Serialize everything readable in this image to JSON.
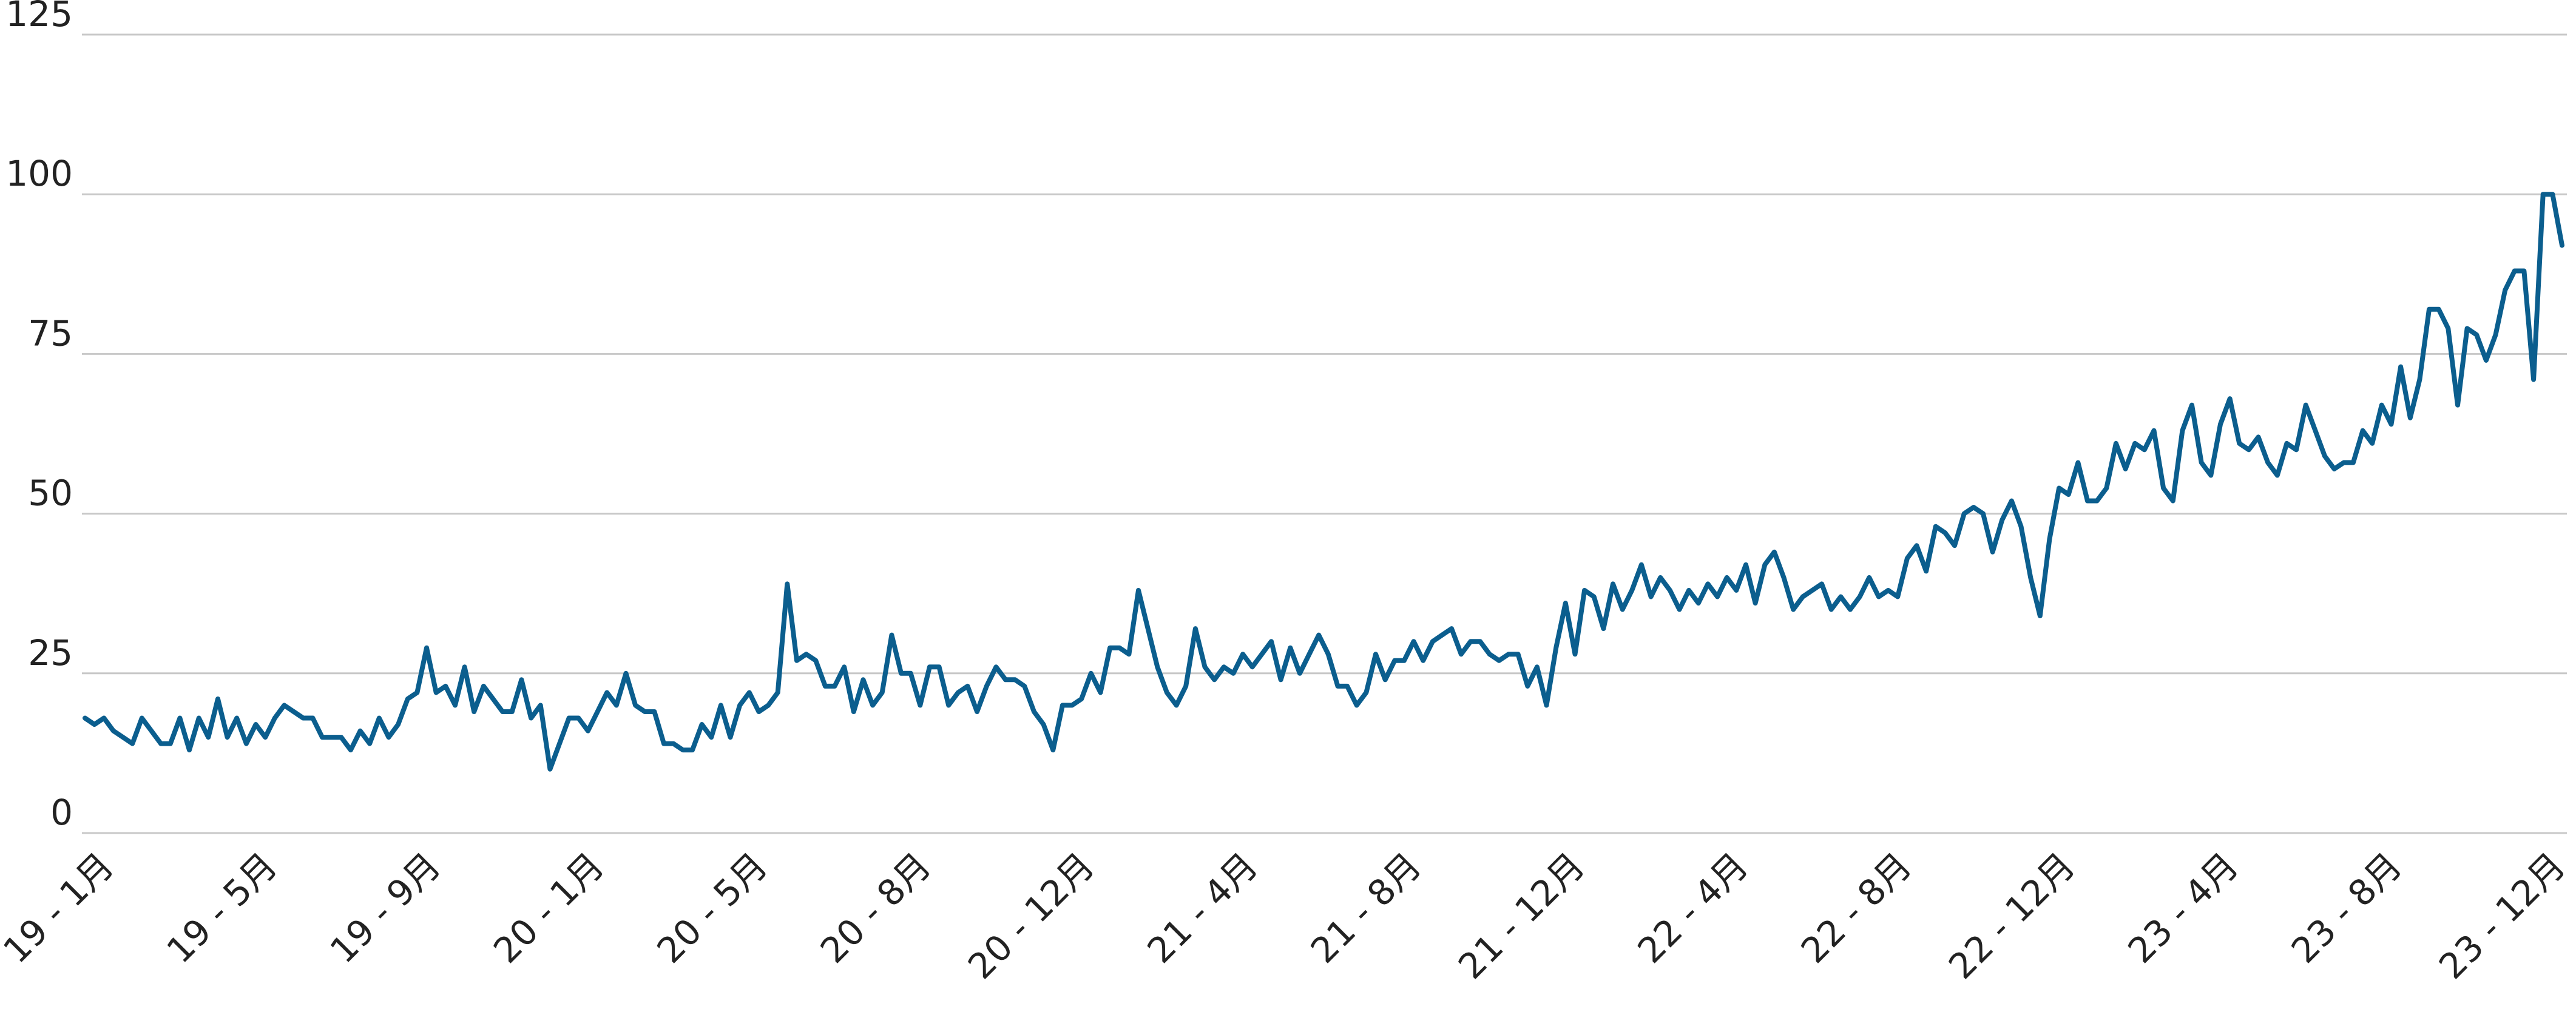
{
  "chart_data": {
    "type": "line",
    "title": "",
    "xlabel": "",
    "ylabel": "",
    "ylim": [
      0,
      125
    ],
    "grid": true,
    "legend": "none",
    "color": "#0b5e8e",
    "yticks": [
      "0",
      "25",
      "50",
      "75",
      "100",
      "125"
    ],
    "xticks": [
      "19 - 1月",
      "19 - 5月",
      "19 - 9月",
      "20 - 1月",
      "20 - 5月",
      "20 - 8月",
      "20 - 12月",
      "21 - 4月",
      "21 - 8月",
      "21 - 12月",
      "22 - 4月",
      "22 - 8月",
      "22 - 12月",
      "23 - 4月",
      "23 - 8月",
      "23 - 12月"
    ],
    "series": [
      {
        "name": "",
        "values": [
          18,
          17,
          18,
          16,
          15,
          14,
          18,
          16,
          14,
          14,
          18,
          13,
          18,
          15,
          21,
          15,
          18,
          14,
          17,
          15,
          18,
          20,
          19,
          18,
          18,
          15,
          15,
          15,
          13,
          16,
          14,
          18,
          15,
          17,
          21,
          22,
          29,
          22,
          23,
          20,
          26,
          19,
          23,
          21,
          19,
          19,
          24,
          18,
          20,
          10,
          14,
          18,
          18,
          16,
          19,
          22,
          20,
          25,
          20,
          19,
          19,
          14,
          14,
          13,
          13,
          17,
          15,
          20,
          15,
          20,
          22,
          19,
          20,
          22,
          39,
          27,
          28,
          27,
          23,
          23,
          26,
          19,
          24,
          20,
          22,
          31,
          25,
          25,
          20,
          26,
          26,
          20,
          22,
          23,
          19,
          23,
          26,
          24,
          24,
          23,
          19,
          17,
          13,
          20,
          20,
          21,
          25,
          22,
          29,
          29,
          28,
          38,
          32,
          26,
          22,
          20,
          23,
          32,
          26,
          24,
          26,
          25,
          28,
          26,
          28,
          30,
          24,
          29,
          25,
          28,
          31,
          28,
          23,
          23,
          20,
          22,
          28,
          24,
          27,
          27,
          30,
          27,
          30,
          31,
          32,
          28,
          30,
          30,
          28,
          27,
          28,
          28,
          23,
          26,
          20,
          29,
          36,
          28,
          38,
          37,
          32,
          39,
          35,
          38,
          42,
          37,
          40,
          38,
          35,
          38,
          36,
          39,
          37,
          40,
          38,
          42,
          36,
          42,
          44,
          40,
          35,
          37,
          38,
          39,
          35,
          37,
          35,
          37,
          40,
          37,
          38,
          37,
          43,
          45,
          41,
          48,
          47,
          45,
          50,
          51,
          50,
          44,
          49,
          52,
          48,
          40,
          34,
          46,
          54,
          53,
          58,
          52,
          52,
          54,
          61,
          57,
          61,
          60,
          63,
          54,
          52,
          63,
          67,
          58,
          56,
          64,
          68,
          61,
          60,
          62,
          58,
          56,
          61,
          60,
          67,
          63,
          59,
          57,
          58,
          58,
          63,
          61,
          67,
          64,
          73,
          65,
          71,
          82,
          82,
          79,
          67,
          79,
          78,
          74,
          78,
          85,
          88,
          88,
          71,
          100,
          100,
          92
        ]
      }
    ]
  }
}
